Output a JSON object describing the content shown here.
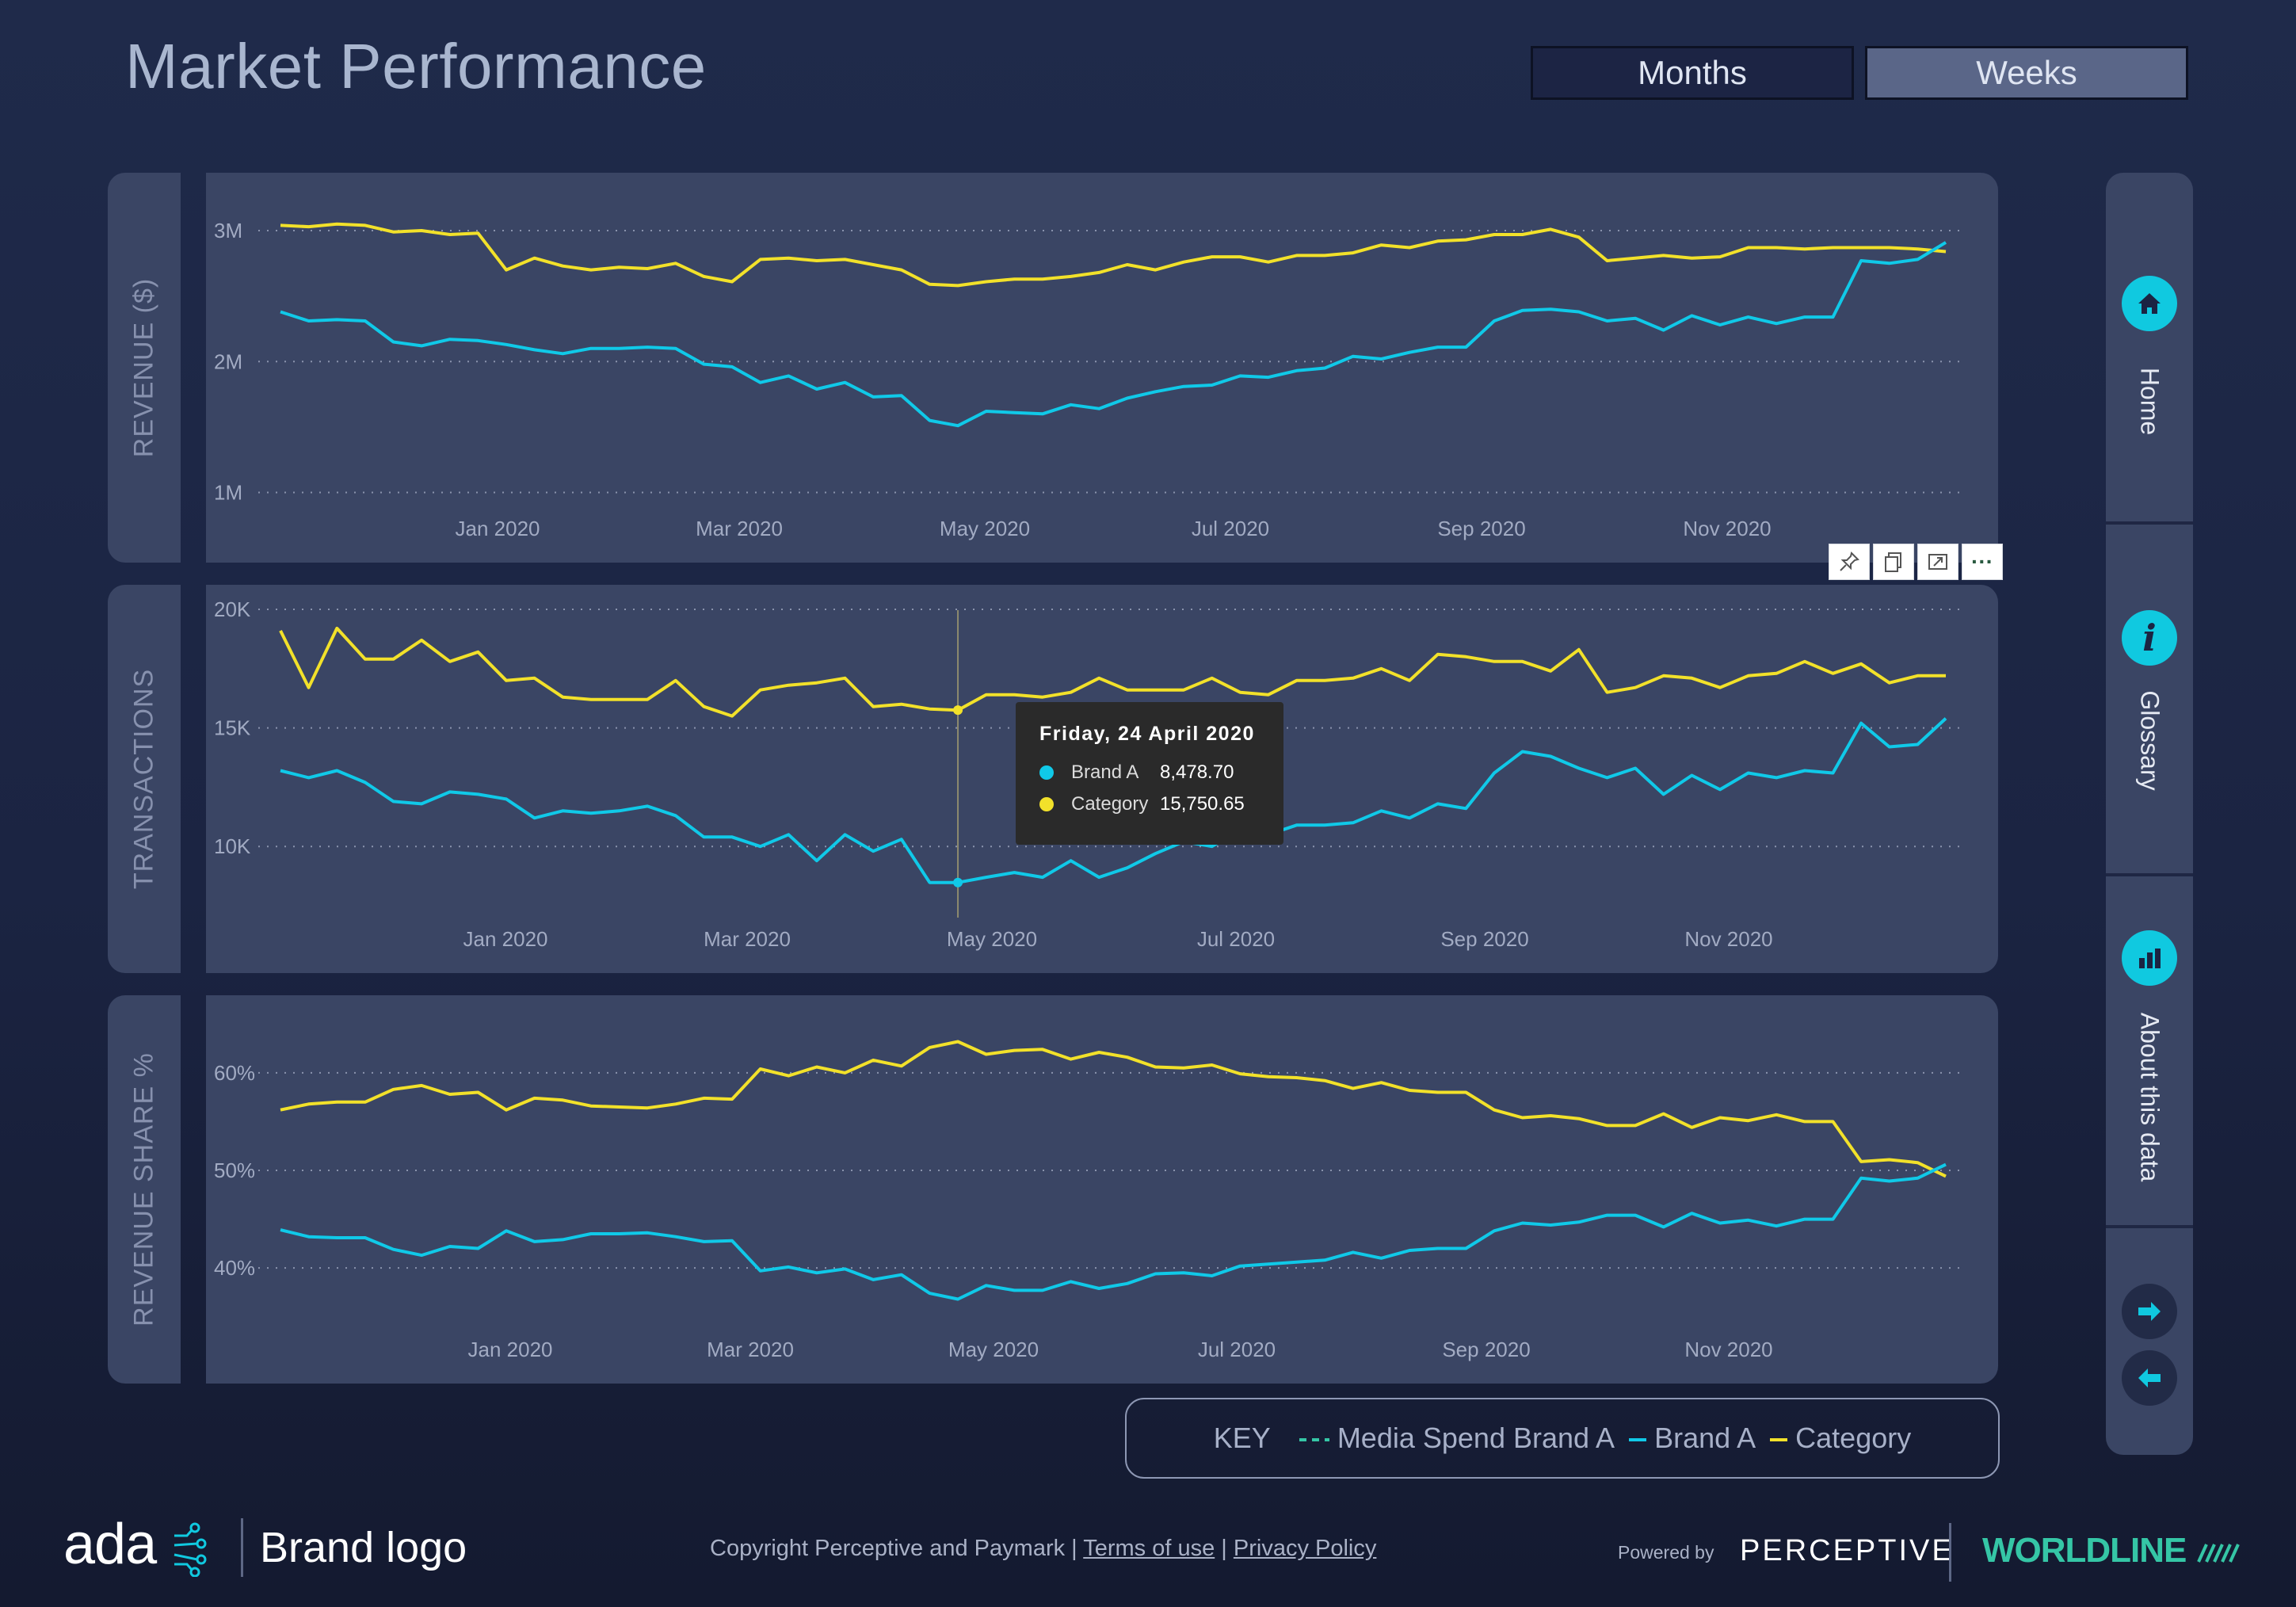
{
  "header": {
    "title": "Market Performance",
    "toggle_months": "Months",
    "toggle_weeks": "Weeks",
    "active_toggle": "Weeks"
  },
  "colors": {
    "brand": "#10c9e8",
    "category": "#f2e12a",
    "panel": "#3a4564",
    "background": "#1f2a4a"
  },
  "panels": {
    "revenue_label": "REVENUE ($)",
    "transactions_label": "TRANSACTIONS",
    "share_label": "REVENUE SHARE %"
  },
  "viz_tools": [
    "pin-icon",
    "copy-icon",
    "focus-mode-icon",
    "more-options-icon"
  ],
  "viz_tools_more": "···",
  "tooltip": {
    "title": "Friday, 24 April 2020",
    "rows": [
      {
        "name": "Brand A",
        "value": "8,478.70"
      },
      {
        "name": "Category",
        "value": "15,750.65"
      }
    ]
  },
  "key": {
    "title": "KEY",
    "items": [
      "Media Spend Brand A",
      "Brand A",
      "Category"
    ]
  },
  "nav": {
    "home": "Home",
    "glossary": "Glossary",
    "about": "About this data",
    "next": "arrow-right-icon",
    "prev": "arrow-left-icon"
  },
  "footer": {
    "logo": "ada",
    "brand_logo": "Brand logo",
    "copyright": "Copyright Perceptive and Paymark | ",
    "terms": "Terms of use",
    "sep": " | ",
    "privacy": "Privacy Policy",
    "powered_by": "Powered by",
    "perceptive": "PERCEPTIVE",
    "worldline": "WORLDLINE"
  },
  "chart_data": [
    {
      "type": "line",
      "ylabel": "REVENUE ($)",
      "x_tick_labels": [
        "Jan 2020",
        "Mar 2020",
        "May 2020",
        "Jul 2020",
        "Sep 2020",
        "Nov 2020"
      ],
      "y_ticks": [
        {
          "label": "1M",
          "value": 1000000
        },
        {
          "label": "2M",
          "value": 2000000
        },
        {
          "label": "3M",
          "value": 3000000
        }
      ],
      "ylim": [
        900000,
        3200000
      ],
      "grid": true,
      "series": [
        {
          "name": "Category",
          "values": [
            3040000,
            3030000,
            3050000,
            3040000,
            2990000,
            3000000,
            2970000,
            2980000,
            2700000,
            2790000,
            2730000,
            2700000,
            2720000,
            2710000,
            2750000,
            2650000,
            2610000,
            2780000,
            2790000,
            2770000,
            2780000,
            2740000,
            2700000,
            2590000,
            2580000,
            2610000,
            2630000,
            2630000,
            2650000,
            2680000,
            2740000,
            2700000,
            2760000,
            2800000,
            2800000,
            2760000,
            2810000,
            2810000,
            2830000,
            2890000,
            2870000,
            2920000,
            2930000,
            2970000,
            2970000,
            3010000,
            2950000,
            2770000,
            2790000,
            2810000,
            2790000,
            2800000,
            2870000,
            2870000,
            2860000,
            2870000,
            2870000,
            2870000,
            2860000,
            2840000
          ]
        },
        {
          "name": "Brand A",
          "values": [
            2380000,
            2310000,
            2320000,
            2310000,
            2150000,
            2120000,
            2170000,
            2160000,
            2130000,
            2090000,
            2060000,
            2100000,
            2100000,
            2110000,
            2100000,
            1980000,
            1960000,
            1840000,
            1890000,
            1790000,
            1840000,
            1730000,
            1740000,
            1550000,
            1510000,
            1620000,
            1610000,
            1600000,
            1670000,
            1640000,
            1720000,
            1770000,
            1810000,
            1820000,
            1890000,
            1880000,
            1930000,
            1950000,
            2040000,
            2020000,
            2070000,
            2110000,
            2110000,
            2310000,
            2390000,
            2400000,
            2380000,
            2310000,
            2330000,
            2240000,
            2350000,
            2280000,
            2340000,
            2290000,
            2340000,
            2340000,
            2770000,
            2750000,
            2780000,
            2910000
          ]
        }
      ]
    },
    {
      "type": "line",
      "ylabel": "TRANSACTIONS",
      "x_tick_labels": [
        "Jan 2020",
        "Mar 2020",
        "May 2020",
        "Jul 2020",
        "Sep 2020",
        "Nov 2020"
      ],
      "y_ticks": [
        {
          "label": "10K",
          "value": 10000
        },
        {
          "label": "15K",
          "value": 15000
        },
        {
          "label": "20K",
          "value": 20000
        }
      ],
      "ylim": [
        7000,
        20300
      ],
      "grid": true,
      "series": [
        {
          "name": "Category",
          "values": [
            19100,
            16700,
            19200,
            17900,
            17900,
            18700,
            17800,
            18200,
            17000,
            17100,
            16300,
            16200,
            16200,
            16200,
            17000,
            15900,
            15500,
            16600,
            16800,
            16900,
            17100,
            15900,
            16000,
            15800,
            15750,
            16400,
            16400,
            16300,
            16500,
            17100,
            16600,
            16600,
            16600,
            17100,
            16500,
            16400,
            17000,
            17000,
            17100,
            17500,
            17000,
            18100,
            18000,
            17800,
            17800,
            17400,
            18300,
            16500,
            16700,
            17200,
            17100,
            16700,
            17200,
            17300,
            17800,
            17300,
            17700,
            16900,
            17200,
            17200
          ]
        },
        {
          "name": "Brand A",
          "values": [
            13200,
            12900,
            13200,
            12700,
            11900,
            11800,
            12300,
            12200,
            12000,
            11200,
            11500,
            11400,
            11500,
            11700,
            11300,
            10400,
            10400,
            10000,
            10500,
            9400,
            10500,
            9800,
            10300,
            8480,
            8480,
            8700,
            8900,
            8700,
            9400,
            8700,
            9100,
            9700,
            10200,
            10000,
            10700,
            10500,
            10900,
            10900,
            11000,
            11500,
            11200,
            11800,
            11600,
            13100,
            14000,
            13800,
            13300,
            12900,
            13300,
            12200,
            13000,
            12400,
            13100,
            12900,
            13200,
            13100,
            15200,
            14200,
            14300,
            15400
          ]
        }
      ]
    },
    {
      "type": "line",
      "ylabel": "REVENUE SHARE %",
      "x_tick_labels": [
        "Jan 2020",
        "Mar 2020",
        "May 2020",
        "Jul 2020",
        "Sep 2020",
        "Nov 2020"
      ],
      "y_ticks": [
        {
          "label": "40%",
          "value": 40
        },
        {
          "label": "50%",
          "value": 50
        },
        {
          "label": "60%",
          "value": 60
        }
      ],
      "ylim": [
        34,
        66
      ],
      "grid": true,
      "series": [
        {
          "name": "Category",
          "values": [
            56.2,
            56.8,
            57.0,
            57.0,
            58.3,
            58.7,
            57.8,
            58.0,
            56.2,
            57.4,
            57.2,
            56.6,
            56.5,
            56.4,
            56.8,
            57.4,
            57.3,
            60.4,
            59.7,
            60.6,
            60.0,
            61.3,
            60.7,
            62.6,
            63.2,
            61.9,
            62.3,
            62.4,
            61.4,
            62.1,
            61.6,
            60.6,
            60.5,
            60.8,
            59.9,
            59.6,
            59.5,
            59.2,
            58.4,
            59.0,
            58.2,
            58.0,
            58.0,
            56.2,
            55.4,
            55.6,
            55.3,
            54.6,
            54.6,
            55.8,
            54.4,
            55.4,
            55.1,
            55.7,
            55.0,
            55.0,
            50.9,
            51.1,
            50.8,
            49.4
          ]
        },
        {
          "name": "Brand A",
          "values": [
            43.9,
            43.2,
            43.1,
            43.1,
            41.9,
            41.3,
            42.2,
            42.0,
            43.8,
            42.7,
            42.9,
            43.5,
            43.5,
            43.6,
            43.2,
            42.7,
            42.8,
            39.7,
            40.1,
            39.5,
            39.9,
            38.8,
            39.3,
            37.4,
            36.8,
            38.2,
            37.7,
            37.7,
            38.6,
            37.9,
            38.4,
            39.4,
            39.5,
            39.2,
            40.2,
            40.4,
            40.6,
            40.8,
            41.6,
            41.0,
            41.8,
            42.0,
            42.0,
            43.8,
            44.6,
            44.4,
            44.7,
            45.4,
            45.4,
            44.2,
            45.6,
            44.6,
            44.9,
            44.3,
            45.0,
            45.0,
            49.2,
            48.9,
            49.2,
            50.6
          ]
        }
      ]
    }
  ]
}
